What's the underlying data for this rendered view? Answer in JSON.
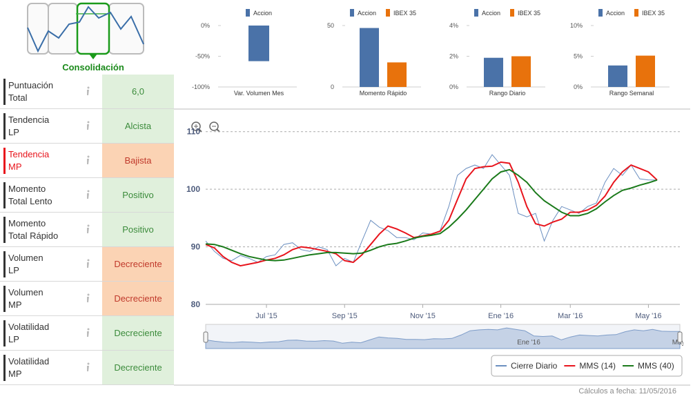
{
  "indicator": {
    "label": "Consolidación"
  },
  "table": {
    "rows": [
      {
        "label": [
          "Puntuación",
          "Total"
        ],
        "value": "6,0",
        "fill": "#e0f0dc",
        "color": "#3b8b3b",
        "accent": "#333333"
      },
      {
        "label": [
          "Tendencia",
          "LP"
        ],
        "value": "Alcista",
        "fill": "#e0f0dc",
        "color": "#3b8b3b",
        "accent": "#333333"
      },
      {
        "label": [
          "Tendencia",
          "MP"
        ],
        "value": "Bajista",
        "fill": "#fbd3b4",
        "color": "#c0392b",
        "accent": "#e8141c"
      },
      {
        "label": [
          "Momento",
          "Total Lento"
        ],
        "value": "Positivo",
        "fill": "#e0f0dc",
        "color": "#3b8b3b",
        "accent": "#333333"
      },
      {
        "label": [
          "Momento",
          "Total Rápido"
        ],
        "value": "Positivo",
        "fill": "#e0f0dc",
        "color": "#3b8b3b",
        "accent": "#333333"
      },
      {
        "label": [
          "Volumen",
          "LP"
        ],
        "value": "Decreciente",
        "fill": "#fbd3b4",
        "color": "#c0392b",
        "accent": "#333333"
      },
      {
        "label": [
          "Volumen",
          "MP"
        ],
        "value": "Decreciente",
        "fill": "#fbd3b4",
        "color": "#c0392b",
        "accent": "#333333"
      },
      {
        "label": [
          "Volatilidad",
          "LP"
        ],
        "value": "Decreciente",
        "fill": "#e0f0dc",
        "color": "#3b8b3b",
        "accent": "#333333"
      },
      {
        "label": [
          "Volatilidad",
          "MP"
        ],
        "value": "Decreciente",
        "fill": "#e0f0dc",
        "color": "#3b8b3b",
        "accent": "#333333"
      }
    ]
  },
  "chart_data": [
    {
      "type": "bar",
      "categories": [
        "Var. Volumen Mes"
      ],
      "series": [
        {
          "name": "Accion",
          "color": "#4a72a8",
          "values": [
            -58
          ]
        }
      ],
      "ylim": [
        -100,
        0
      ],
      "yticks": [
        {
          "value": 0,
          "label": "0%"
        },
        {
          "value": -50,
          "label": "-50%"
        },
        {
          "value": -100,
          "label": "-100%"
        }
      ]
    },
    {
      "type": "bar",
      "categories": [
        "Momento Rápido"
      ],
      "series": [
        {
          "name": "Accion",
          "color": "#4a72a8",
          "values": [
            48
          ]
        },
        {
          "name": "IBEX 35",
          "color": "#e8720c",
          "values": [
            20
          ]
        }
      ],
      "ylim": [
        0,
        50
      ],
      "yticks": [
        0,
        50
      ]
    },
    {
      "type": "bar",
      "categories": [
        "Rango Diario"
      ],
      "series": [
        {
          "name": "Accion",
          "color": "#4a72a8",
          "values": [
            1.9
          ]
        },
        {
          "name": "IBEX 35",
          "color": "#e8720c",
          "values": [
            2.0
          ]
        }
      ],
      "ylim": [
        0,
        4
      ],
      "yticks": [
        {
          "value": 0,
          "label": "0%"
        },
        {
          "value": 2,
          "label": "2%"
        },
        {
          "value": 4,
          "label": "4%"
        }
      ]
    },
    {
      "type": "bar",
      "categories": [
        "Rango Semanal"
      ],
      "series": [
        {
          "name": "Accion",
          "color": "#4a72a8",
          "values": [
            3.5
          ]
        },
        {
          "name": "IBEX 35",
          "color": "#e8720c",
          "values": [
            5.1
          ]
        }
      ],
      "ylim": [
        0,
        10
      ],
      "yticks": [
        {
          "value": 0,
          "label": "0%"
        },
        {
          "value": 5,
          "label": "5%"
        },
        {
          "value": 10,
          "label": "10%"
        }
      ]
    },
    {
      "type": "line",
      "categories": [
        null,
        null,
        null,
        null,
        null,
        null,
        null,
        "Jul '15",
        null,
        null,
        null,
        null,
        null,
        null,
        null,
        null,
        "Sep '15",
        null,
        null,
        null,
        null,
        null,
        null,
        null,
        null,
        "Nov '15",
        null,
        null,
        null,
        null,
        null,
        null,
        null,
        null,
        "Ene '16",
        null,
        null,
        null,
        null,
        null,
        null,
        null,
        "Mar '16",
        null,
        null,
        null,
        null,
        null,
        null,
        null,
        null,
        "May '16",
        null
      ],
      "series": [
        {
          "name": "Cierre Diario",
          "color": "#6b8fc0",
          "values": [
            91,
            89.2,
            88,
            87.6,
            88.5,
            88,
            87.3,
            88.3,
            88.6,
            90.4,
            90.7,
            89.5,
            89.2,
            90,
            89.5,
            86.7,
            88,
            87.3,
            91,
            94.6,
            93.4,
            92.8,
            91.6,
            91.6,
            91.2,
            92.4,
            92.2,
            92.8,
            97,
            102.4,
            103.6,
            104.2,
            103.6,
            106,
            104.2,
            102.4,
            95.8,
            95.2,
            95.8,
            91,
            94.6,
            97,
            96.4,
            95.8,
            97,
            97.6,
            101.2,
            103.6,
            102.4,
            104.2,
            101.8,
            101.6,
            101.6
          ]
        },
        {
          "name": "MMS (14)",
          "color": "#e8141c",
          "values": [
            90.4,
            89.8,
            88.3,
            87.3,
            86.7,
            87,
            87.3,
            87.7,
            88,
            88.6,
            89.5,
            90,
            89.8,
            89.5,
            89.2,
            88.8,
            87.6,
            87.3,
            88.6,
            90.4,
            92.2,
            93.6,
            93.1,
            92.4,
            91.6,
            91.9,
            92.2,
            92.7,
            94.6,
            98.2,
            101.8,
            103.6,
            103.9,
            104,
            104.7,
            104.5,
            101.2,
            97,
            94,
            93.6,
            94.3,
            94.8,
            96,
            96,
            96.4,
            97.2,
            98.8,
            101.2,
            103,
            104.2,
            103.6,
            103,
            101.6
          ]
        },
        {
          "name": "MMS (40)",
          "color": "#1a7a1a",
          "values": [
            90.5,
            90.4,
            90,
            89.4,
            88.8,
            88.3,
            88,
            87.7,
            87.6,
            87.7,
            88,
            88.3,
            88.6,
            88.8,
            89,
            89,
            88.9,
            88.8,
            88.9,
            89.4,
            90,
            90.4,
            90.6,
            91,
            91.5,
            91.8,
            92,
            92.3,
            93.4,
            94.8,
            96.4,
            98.2,
            100,
            101.8,
            103,
            103.4,
            102.4,
            101.2,
            99.4,
            98,
            97,
            96,
            95.4,
            95.4,
            95.8,
            96.6,
            97.8,
            98.9,
            99.8,
            100.2,
            100.7,
            101.1,
            101.6
          ]
        }
      ],
      "ylim": [
        80,
        112
      ],
      "yticks": [
        80,
        90,
        100,
        110
      ],
      "grid": true
    }
  ],
  "footer": "Cálculos a fecha: 11/05/2016"
}
